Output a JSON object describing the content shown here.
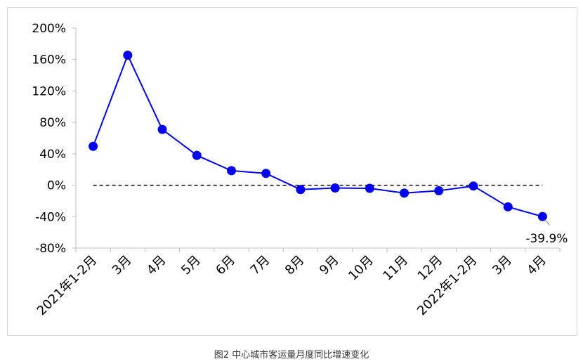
{
  "caption": "图2   中心城市客运量月度同比增速变化",
  "chart_data": {
    "type": "line",
    "categories": [
      "2021年1-2月",
      "3月",
      "4月",
      "5月",
      "6月",
      "7月",
      "8月",
      "9月",
      "10月",
      "11月",
      "12月",
      "2022年1-2月",
      "3月",
      "4月"
    ],
    "series": [
      {
        "values": [
          49.5,
          165.5,
          71,
          38,
          18.5,
          15,
          -5.5,
          -3.5,
          -4,
          -10,
          -7,
          -1,
          -27.5,
          -39.9
        ]
      }
    ],
    "ylim": [
      -80,
      200
    ],
    "yticks": [
      -80,
      -40,
      0,
      40,
      80,
      120,
      160,
      200
    ],
    "ytick_labels": [
      "-80%",
      "-40%",
      "0%",
      "40%",
      "80%",
      "120%",
      "160%",
      "200%"
    ],
    "reference_line": 0,
    "annotation": {
      "index": 13,
      "text": "-39.9%"
    },
    "colors": {
      "series": "#0000ee",
      "reference": "#000000",
      "axis": "#bfbfbf",
      "text": "#000000"
    }
  }
}
